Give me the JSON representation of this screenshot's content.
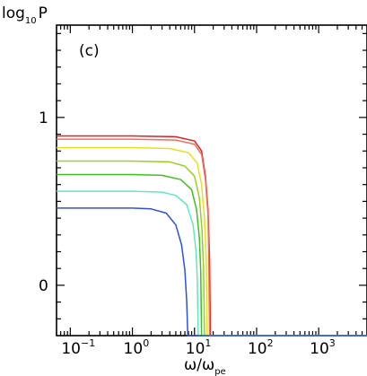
{
  "chart_data": {
    "type": "line",
    "panel_label": "(c)",
    "ylabel": {
      "base": "log",
      "subscript": "10",
      "symbol": "P"
    },
    "xlabel": {
      "main": "ω/ω",
      "subscript": "pe"
    },
    "x_scale": "log",
    "xlim": [
      0.06,
      6000
    ],
    "ylim": [
      -0.3,
      1.55
    ],
    "x_ticks": [
      {
        "value": 0.1,
        "base": "10",
        "exp": "−1"
      },
      {
        "value": 1,
        "base": "10",
        "exp": "0"
      },
      {
        "value": 10,
        "base": "10",
        "exp": "1"
      },
      {
        "value": 100,
        "base": "10",
        "exp": "2"
      },
      {
        "value": 1000,
        "base": "10",
        "exp": "3"
      }
    ],
    "y_ticks": [
      {
        "value": 0,
        "label": "0"
      },
      {
        "value": 1,
        "label": "1"
      }
    ],
    "grid": false,
    "legend": "none",
    "series": [
      {
        "color": "#e02020",
        "plateau": 0.89,
        "cutoff": 18,
        "values_x": [
          0.06,
          1,
          5,
          10,
          13,
          15,
          16.5,
          17.5,
          18,
          6000
        ],
        "values_y": [
          0.89,
          0.89,
          0.885,
          0.86,
          0.8,
          0.65,
          0.45,
          0.15,
          -0.3,
          -0.3
        ]
      },
      {
        "color": "#f07060",
        "plateau": 0.87,
        "cutoff": 17.5,
        "values_x": [
          0.06,
          1,
          5,
          10,
          13,
          15,
          16.5,
          17,
          17.5,
          6000
        ],
        "values_y": [
          0.87,
          0.87,
          0.865,
          0.84,
          0.78,
          0.63,
          0.42,
          0.15,
          -0.3,
          -0.3
        ]
      },
      {
        "color": "#e6e020",
        "plateau": 0.82,
        "cutoff": 16,
        "values_x": [
          0.06,
          1,
          4,
          8,
          11,
          13,
          14.5,
          15.5,
          16,
          6000
        ],
        "values_y": [
          0.82,
          0.82,
          0.815,
          0.79,
          0.73,
          0.6,
          0.4,
          0.15,
          -0.3,
          -0.3
        ]
      },
      {
        "color": "#9ad020",
        "plateau": 0.74,
        "cutoff": 14.5,
        "values_x": [
          0.06,
          1,
          4,
          7,
          10,
          12,
          13.2,
          14,
          14.5,
          6000
        ],
        "values_y": [
          0.74,
          0.74,
          0.735,
          0.71,
          0.65,
          0.52,
          0.33,
          0.1,
          -0.3,
          -0.3
        ]
      },
      {
        "color": "#40c020",
        "plateau": 0.66,
        "cutoff": 13,
        "values_x": [
          0.06,
          1,
          3,
          6,
          9,
          10.8,
          12,
          12.6,
          13,
          6000
        ],
        "values_y": [
          0.66,
          0.66,
          0.655,
          0.63,
          0.57,
          0.45,
          0.28,
          0.08,
          -0.3,
          -0.3
        ]
      },
      {
        "color": "#60e8c0",
        "plateau": 0.56,
        "cutoff": 11.5,
        "values_x": [
          0.06,
          1,
          3,
          5,
          7.5,
          9.5,
          10.6,
          11.1,
          11.5,
          6000
        ],
        "values_y": [
          0.56,
          0.56,
          0.555,
          0.535,
          0.48,
          0.36,
          0.2,
          0.03,
          -0.3,
          -0.3
        ]
      },
      {
        "color": "#3050d8",
        "plateau": 0.46,
        "cutoff": 7.8,
        "values_x": [
          0.06,
          1,
          2,
          3.5,
          5,
          6.2,
          7,
          7.5,
          7.8,
          6000
        ],
        "values_y": [
          0.46,
          0.46,
          0.455,
          0.43,
          0.36,
          0.24,
          0.09,
          -0.1,
          -0.3,
          -0.3
        ]
      }
    ]
  }
}
